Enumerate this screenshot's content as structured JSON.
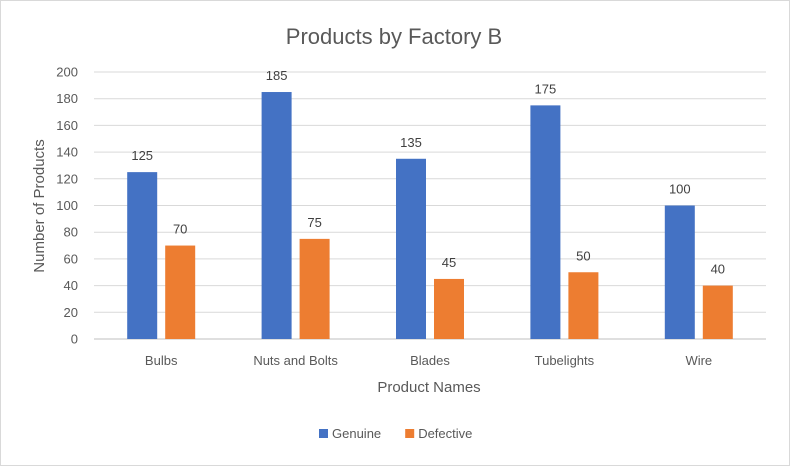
{
  "chart_data": {
    "type": "bar",
    "title": "Products by Factory B",
    "xlabel": "Product Names",
    "ylabel": "Number of Products",
    "categories": [
      "Bulbs",
      "Nuts and Bolts",
      "Blades",
      "Tubelights",
      "Wire"
    ],
    "series": [
      {
        "name": "Genuine",
        "values": [
          125,
          185,
          135,
          175,
          100
        ],
        "color": "#4472c4"
      },
      {
        "name": "Defective",
        "values": [
          70,
          75,
          45,
          50,
          40
        ],
        "color": "#ed7d31"
      }
    ],
    "ylim": [
      0,
      200
    ],
    "yticks": [
      "0",
      "20",
      "40",
      "60",
      "80",
      "100",
      "120",
      "140",
      "160",
      "180",
      "200"
    ],
    "grid": true,
    "legend_position": "bottom",
    "data_labels": true
  }
}
